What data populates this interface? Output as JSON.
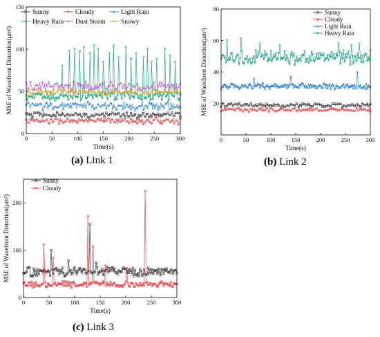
{
  "figure": {
    "panels": [
      {
        "letter": "(a)",
        "label": "Link 1"
      },
      {
        "letter": "(b)",
        "label": "Link 2"
      },
      {
        "letter": "(c)",
        "label": "Link 3"
      }
    ]
  },
  "chart_data": [
    {
      "type": "line",
      "title": "",
      "xlabel": "Time(s)",
      "ylabel": "MSE of Wavefront Distortion(μm²)",
      "xlim": [
        0,
        300
      ],
      "ylim": [
        0,
        150
      ],
      "xticks": [
        0,
        50,
        100,
        150,
        200,
        250,
        300
      ],
      "yticks": [
        0,
        50,
        100,
        150
      ],
      "legend": "top, 3 columns",
      "series": [
        {
          "name": "Sunny",
          "color": "#333333",
          "marker": "square",
          "mean": 22,
          "amp": 3,
          "spikes": []
        },
        {
          "name": "Cloudy",
          "color": "#e8393d",
          "marker": "circle",
          "mean": 15,
          "amp": 3,
          "spikes": []
        },
        {
          "name": "Light Rain",
          "color": "#2a7fd0",
          "marker": "triangle",
          "mean": 33,
          "amp": 4,
          "spikes": []
        },
        {
          "name": "Heavy Rain",
          "color": "#1ea27a",
          "marker": "triangle-down",
          "mean": 44,
          "amp": 4,
          "spikes": [
            [
              70,
              80
            ],
            [
              85,
              98
            ],
            [
              95,
              100
            ],
            [
              104,
              97
            ],
            [
              113,
              102
            ],
            [
              124,
              95
            ],
            [
              133,
              104
            ],
            [
              141,
              100
            ],
            [
              150,
              85
            ],
            [
              163,
              95
            ],
            [
              171,
              104
            ],
            [
              180,
              90
            ],
            [
              194,
              102
            ],
            [
              205,
              88
            ],
            [
              215,
              95
            ],
            [
              228,
              90
            ],
            [
              236,
              100
            ],
            [
              245,
              85
            ],
            [
              254,
              88
            ],
            [
              271,
              100
            ],
            [
              281,
              92
            ],
            [
              290,
              85
            ]
          ]
        },
        {
          "name": "Dust Storm",
          "color": "#b05ad0",
          "marker": "diamond",
          "mean": 55,
          "amp": 5,
          "spikes": []
        },
        {
          "name": "Snowy",
          "color": "#d9a21b",
          "marker": "left-triangle",
          "mean": 49,
          "amp": 3,
          "spikes": []
        }
      ]
    },
    {
      "type": "line",
      "title": "",
      "xlabel": "Time(s)",
      "ylabel": "MSE of Wavefront Distortion(μm²)",
      "xlim": [
        0,
        300
      ],
      "ylim": [
        0,
        80
      ],
      "xticks": [
        0,
        50,
        100,
        150,
        200,
        250,
        300
      ],
      "yticks": [
        20,
        40,
        60,
        80
      ],
      "legend": "top-right",
      "series": [
        {
          "name": "Sunny",
          "color": "#333333",
          "marker": "square",
          "mean": 19,
          "amp": 1.2,
          "spikes": []
        },
        {
          "name": "Cloudy",
          "color": "#e8393d",
          "marker": "circle",
          "mean": 16,
          "amp": 1,
          "spikes": []
        },
        {
          "name": "Light Rain",
          "color": "#2a7fd0",
          "marker": "triangle",
          "mean": 31,
          "amp": 1.5,
          "spikes": [
            [
              67,
              36
            ],
            [
              141,
              37
            ],
            [
              275,
              40
            ]
          ]
        },
        {
          "name": "Heavy Rain",
          "color": "#1ea27a",
          "marker": "triangle-down",
          "mean": 49,
          "amp": 3.5,
          "spikes": [
            [
              13,
              60
            ],
            [
              41,
              61
            ],
            [
              79,
              58
            ],
            [
              119,
              57
            ],
            [
              237,
              58
            ],
            [
              262,
              57
            ],
            [
              279,
              58
            ]
          ]
        }
      ]
    },
    {
      "type": "line",
      "title": "",
      "xlabel": "Time(s)",
      "ylabel": "MSE of Wavefront Distortion(μm²)",
      "xlim": [
        0,
        300
      ],
      "ylim": [
        0,
        250
      ],
      "xticks": [
        0,
        50,
        100,
        150,
        200,
        250,
        300
      ],
      "yticks": [
        0,
        100,
        200
      ],
      "legend": "top-left",
      "series": [
        {
          "name": "Sunny",
          "color": "#333333",
          "marker": "square",
          "mean": 55,
          "amp": 8,
          "spikes": [
            [
              54,
              100
            ],
            [
              88,
              78
            ],
            [
              130,
              155
            ],
            [
              142,
              74
            ]
          ]
        },
        {
          "name": "Cloudy",
          "color": "#e8393d",
          "marker": "circle",
          "mean": 28,
          "amp": 5,
          "spikes": [
            [
              41,
              112
            ],
            [
              58,
              84
            ],
            [
              127,
              172
            ],
            [
              136,
              108
            ],
            [
              160,
              68
            ],
            [
              202,
              62
            ],
            [
              239,
              225
            ]
          ]
        }
      ]
    }
  ]
}
